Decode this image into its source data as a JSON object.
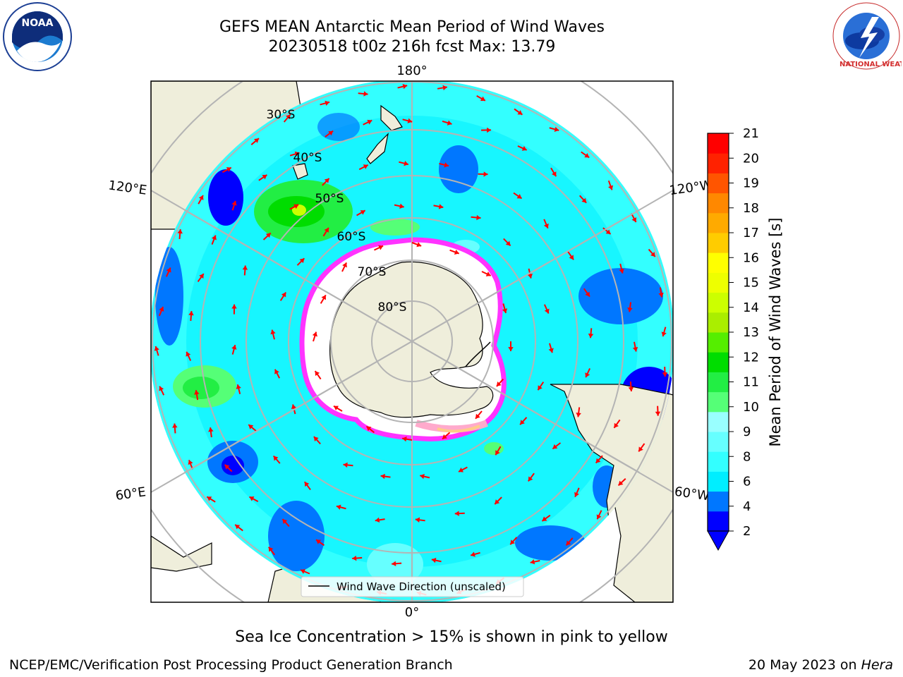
{
  "header": {
    "title_line1": "GEFS MEAN Antarctic Mean Period of Wind Waves",
    "title_line2": "20230518 t00z 216h fcst   Max: 13.79"
  },
  "logos": {
    "left": "noaa-logo",
    "left_text": "NOAA",
    "right": "national-weather-service-logo",
    "right_text": "NATIONAL WEATHER SERVICE"
  },
  "map": {
    "projection": "south-polar-stereographic",
    "longitude_labels": [
      "180°",
      "120°E",
      "120°W",
      "60°E",
      "60°W",
      "0°"
    ],
    "latitude_labels": [
      "30°S",
      "40°S",
      "50°S",
      "60°S",
      "70°S",
      "80°S"
    ],
    "legend_label": "Wind Wave Direction (unscaled)",
    "arrow_color": "#ff0000",
    "land_color": "#efeedb"
  },
  "colorbar": {
    "label": "Mean Period of Wind Waves [s]",
    "ticks": [
      "21",
      "20",
      "19",
      "18",
      "17",
      "16",
      "15",
      "14",
      "13",
      "12",
      "11",
      "10",
      "9",
      "8",
      "6",
      "4",
      "2"
    ],
    "colors_bottom_to_top": [
      "#0000ff",
      "#0077ff",
      "#00eeff",
      "#33ffff",
      "#66ffff",
      "#99ffff",
      "#55ff77",
      "#22ee44",
      "#00dd00",
      "#55ee00",
      "#aaee00",
      "#ccff00",
      "#eeff00",
      "#ffff00",
      "#ffcc00",
      "#ffaa00",
      "#ff8800",
      "#ff5500",
      "#ff2200",
      "#ff0000"
    ]
  },
  "caption": "Sea Ice Concentration > 15% is shown in pink to yellow",
  "footer": {
    "left": "NCEP/EMC/Verification Post Processing Product Generation Branch",
    "right_date": "20 May 2023 on ",
    "right_host": "Hera"
  }
}
